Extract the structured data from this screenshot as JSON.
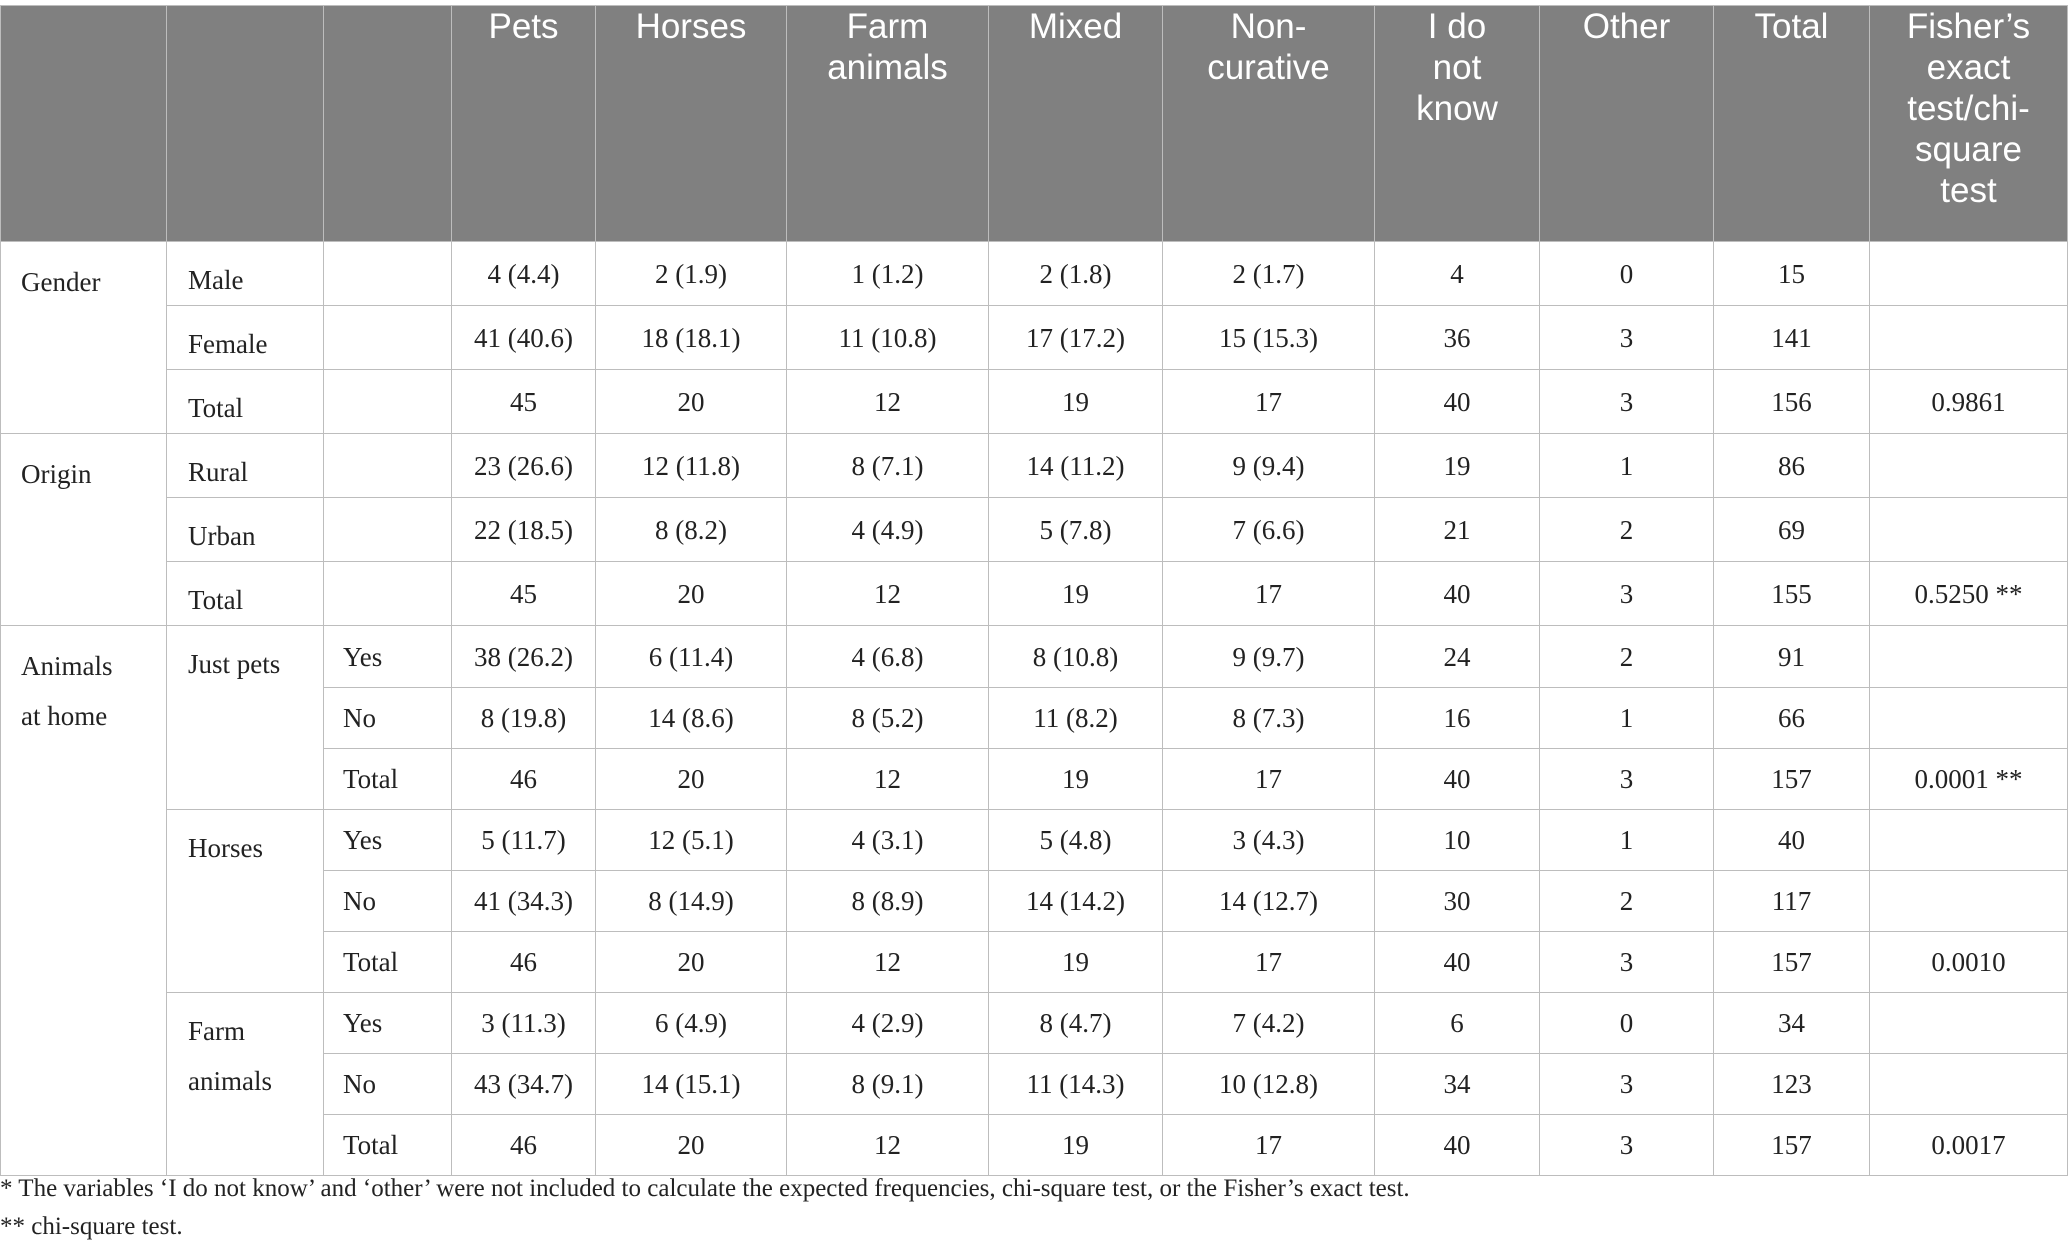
{
  "columns": [
    "Pets",
    "Horses",
    "Farm animals",
    "Mixed",
    "Non-curative",
    "I do not know",
    "Other",
    "Total",
    "Fisher’s exact test/chi-square test"
  ],
  "header_lines": [
    [
      "Pets"
    ],
    [
      "Horses"
    ],
    [
      "Farm",
      "animals"
    ],
    [
      "Mixed"
    ],
    [
      "Non-",
      "curative"
    ],
    [
      "I do",
      "not",
      "know"
    ],
    [
      "Other"
    ],
    [
      "Total"
    ],
    [
      "Fisher’s",
      "exact",
      "test/chi-",
      "square",
      "test"
    ]
  ],
  "groups": [
    {
      "label": "Gender",
      "rows": [
        {
          "sub": "Male",
          "yn": "",
          "values": [
            "4 (4.4)",
            "2 (1.9)",
            "1 (1.2)",
            "2 (1.8)",
            "2 (1.7)",
            "4",
            "0",
            "15",
            ""
          ]
        },
        {
          "sub": "Female",
          "yn": "",
          "values": [
            "41 (40.6)",
            "18 (18.1)",
            "11 (10.8)",
            "17 (17.2)",
            "15 (15.3)",
            "36",
            "3",
            "141",
            ""
          ]
        },
        {
          "sub": "Total",
          "yn": "",
          "values": [
            "45",
            "20",
            "12",
            "19",
            "17",
            "40",
            "3",
            "156",
            "0.9861"
          ]
        }
      ]
    },
    {
      "label": "Origin",
      "rows": [
        {
          "sub": "Rural",
          "yn": "",
          "values": [
            "23 (26.6)",
            "12 (11.8)",
            "8 (7.1)",
            "14 (11.2)",
            "9 (9.4)",
            "19",
            "1",
            "86",
            ""
          ]
        },
        {
          "sub": "Urban",
          "yn": "",
          "values": [
            "22 (18.5)",
            "8 (8.2)",
            "4 (4.9)",
            "5 (7.8)",
            "7 (6.6)",
            "21",
            "2",
            "69",
            ""
          ]
        },
        {
          "sub": "Total",
          "yn": "",
          "values": [
            "45",
            "20",
            "12",
            "19",
            "17",
            "40",
            "3",
            "155",
            "0.5250 **"
          ]
        }
      ]
    },
    {
      "label": "Animals at home",
      "label_lines": [
        "Animals",
        "at home"
      ],
      "subgroups": [
        {
          "label_lines": [
            "Just pets"
          ],
          "rows": [
            {
              "yn": "Yes",
              "values": [
                "38 (26.2)",
                "6 (11.4)",
                "4 (6.8)",
                "8 (10.8)",
                "9 (9.7)",
                "24",
                "2",
                "91",
                ""
              ]
            },
            {
              "yn": "No",
              "values": [
                "8 (19.8)",
                "14 (8.6)",
                "8 (5.2)",
                "11 (8.2)",
                "8 (7.3)",
                "16",
                "1",
                "66",
                ""
              ]
            },
            {
              "yn": "Total",
              "values": [
                "46",
                "20",
                "12",
                "19",
                "17",
                "40",
                "3",
                "157",
                "0.0001 **"
              ]
            }
          ]
        },
        {
          "label_lines": [
            "Horses"
          ],
          "rows": [
            {
              "yn": "Yes",
              "values": [
                "5 (11.7)",
                "12 (5.1)",
                "4 (3.1)",
                "5 (4.8)",
                "3 (4.3)",
                "10",
                "1",
                "40",
                ""
              ]
            },
            {
              "yn": "No",
              "values": [
                "41 (34.3)",
                "8 (14.9)",
                "8 (8.9)",
                "14 (14.2)",
                "14 (12.7)",
                "30",
                "2",
                "117",
                ""
              ]
            },
            {
              "yn": "Total",
              "values": [
                "46",
                "20",
                "12",
                "19",
                "17",
                "40",
                "3",
                "157",
                "0.0010"
              ]
            }
          ]
        },
        {
          "label_lines": [
            "Farm",
            "animals"
          ],
          "rows": [
            {
              "yn": "Yes",
              "values": [
                "3 (11.3)",
                "6 (4.9)",
                "4 (2.9)",
                "8 (4.7)",
                "7 (4.2)",
                "6",
                "0",
                "34",
                ""
              ]
            },
            {
              "yn": "No",
              "values": [
                "43 (34.7)",
                "14 (15.1)",
                "8 (9.1)",
                "11 (14.3)",
                "10 (12.8)",
                "34",
                "3",
                "123",
                ""
              ]
            },
            {
              "yn": "Total",
              "values": [
                "46",
                "20",
                "12",
                "19",
                "17",
                "40",
                "3",
                "157",
                "0.0017"
              ]
            }
          ]
        }
      ]
    }
  ],
  "footnotes": [
    "* The variables ‘I do not know’ and ‘other’ were not included to calculate the expected frequencies, chi-square test, or the Fisher’s exact test.",
    "** chi-square test."
  ]
}
